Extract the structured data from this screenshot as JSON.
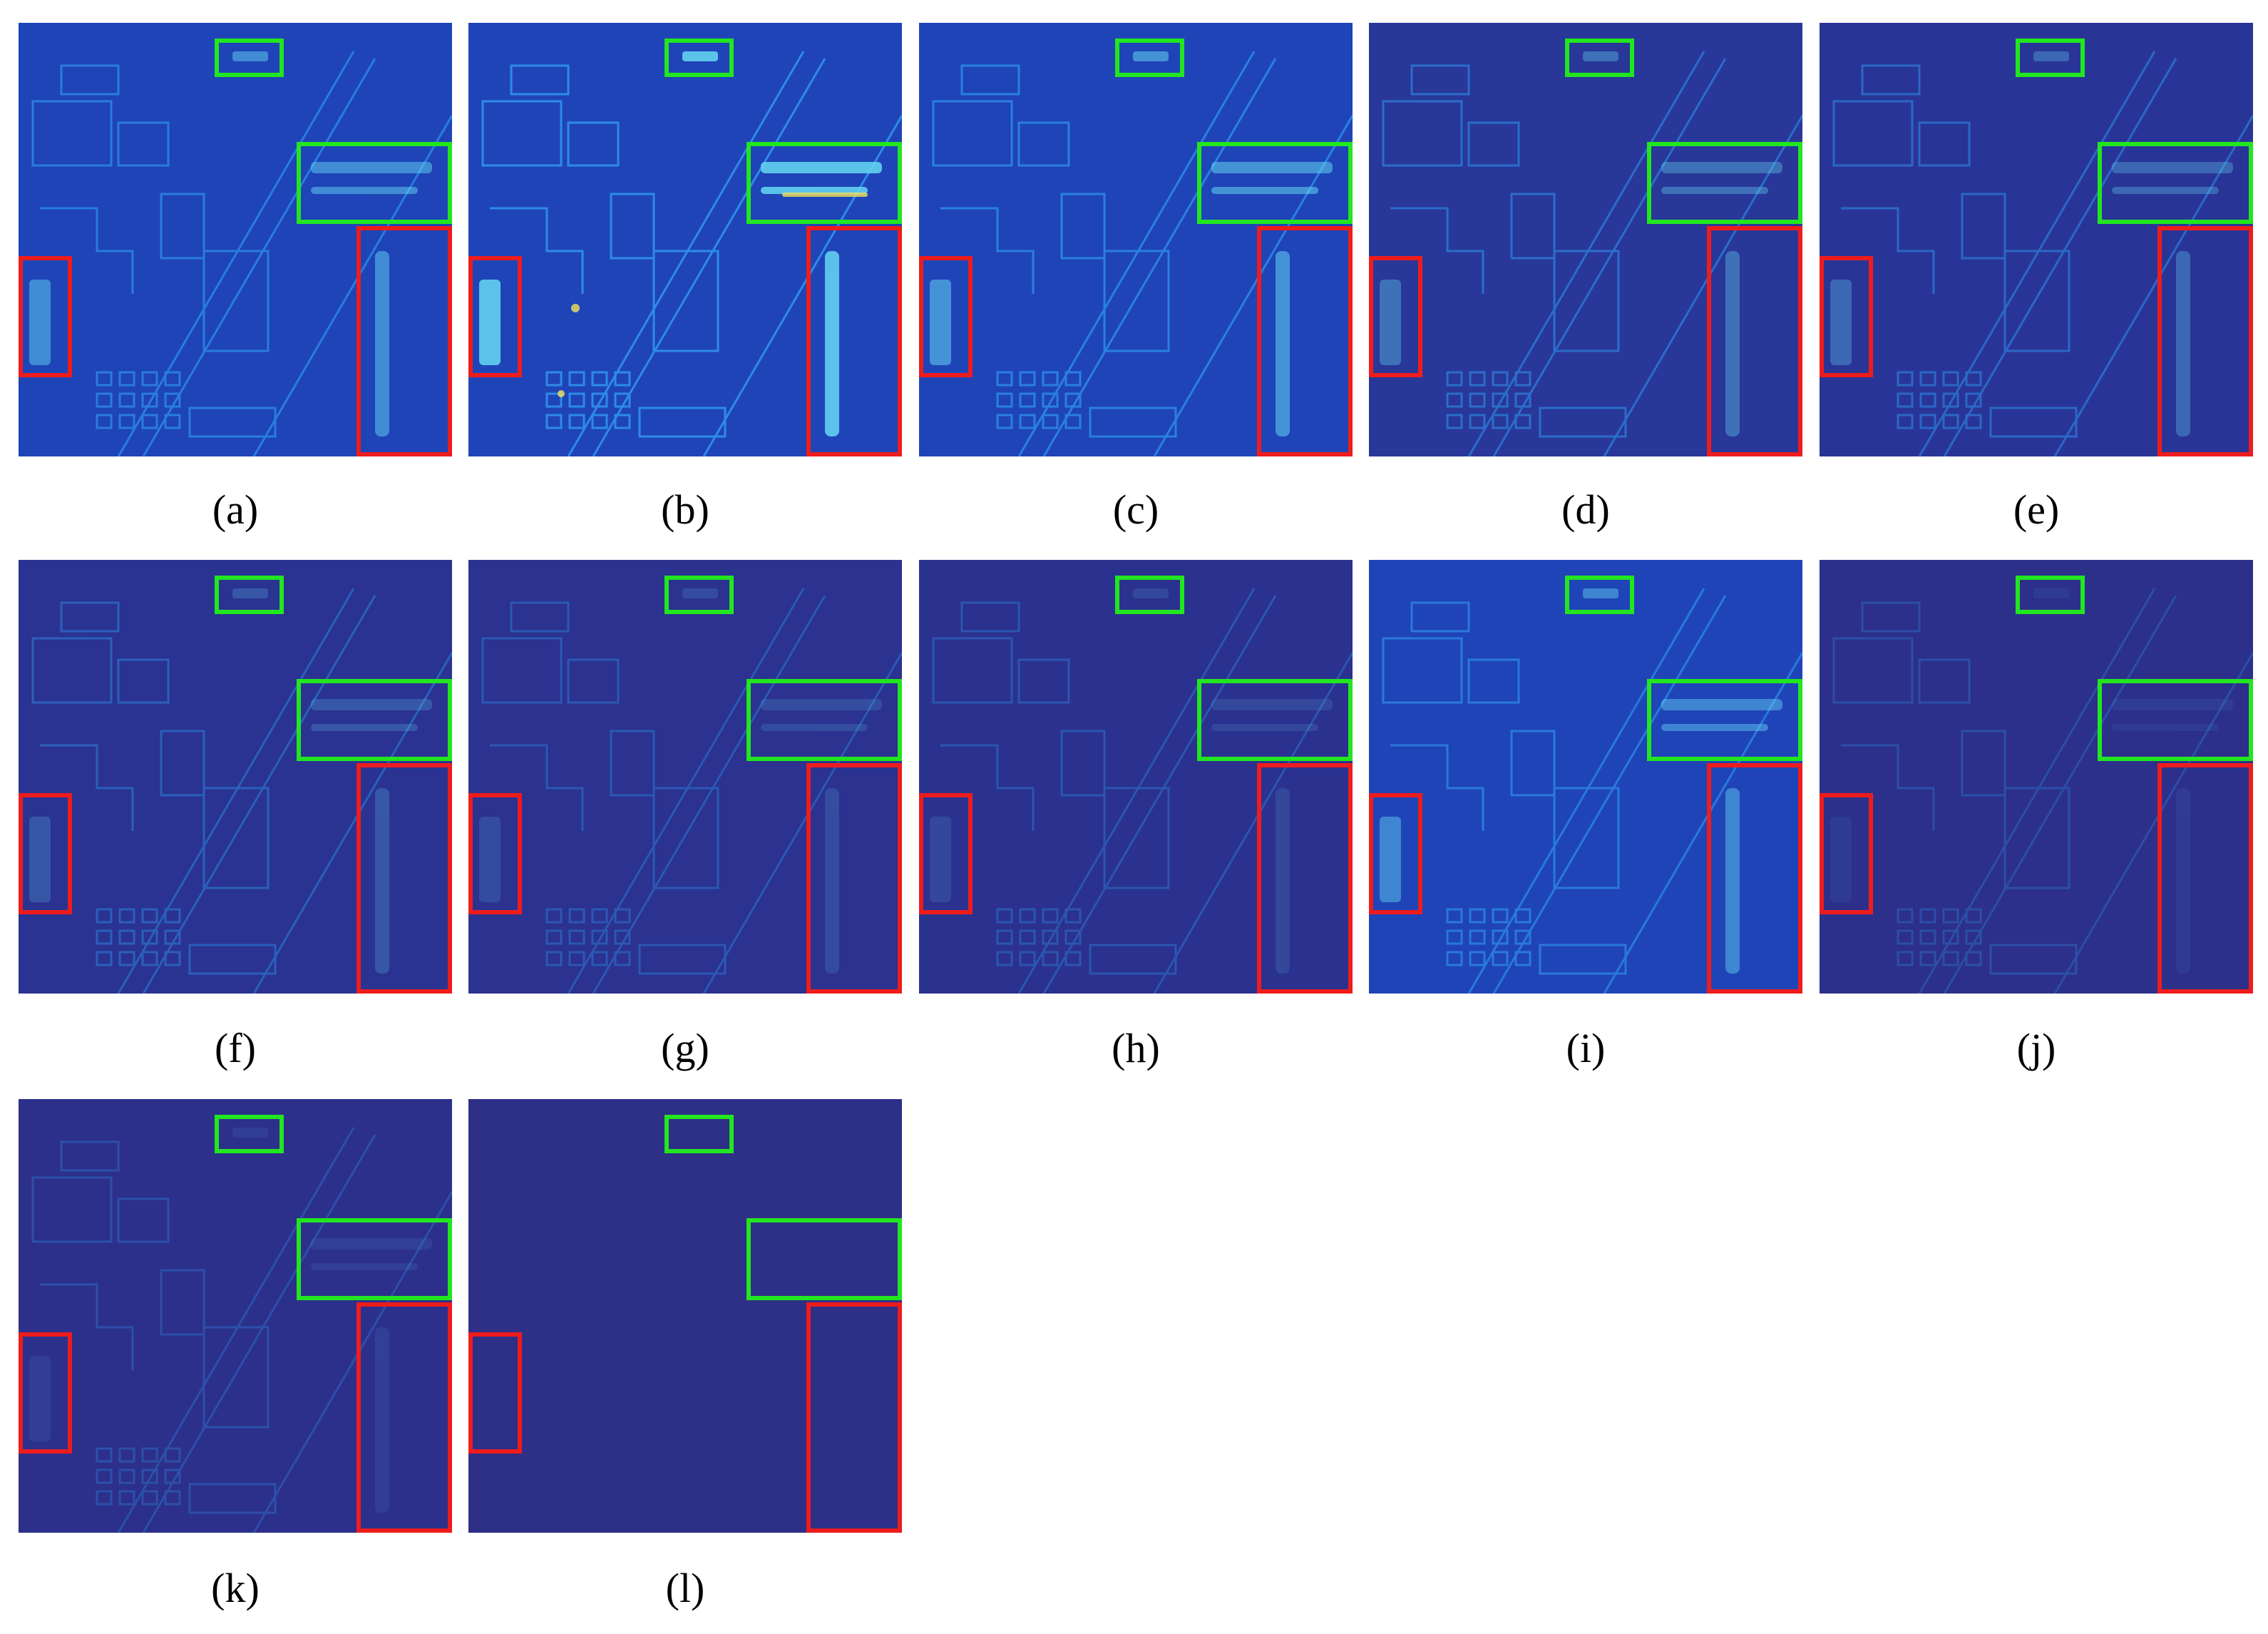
{
  "figure": {
    "panels": [
      {
        "id": "a",
        "caption": "(a)",
        "intensity": 0.55
      },
      {
        "id": "b",
        "caption": "(b)",
        "intensity": 0.95
      },
      {
        "id": "c",
        "caption": "(c)",
        "intensity": 0.6
      },
      {
        "id": "d",
        "caption": "(d)",
        "intensity": 0.4
      },
      {
        "id": "e",
        "caption": "(e)",
        "intensity": 0.35
      },
      {
        "id": "f",
        "caption": "(f)",
        "intensity": 0.25
      },
      {
        "id": "g",
        "caption": "(g)",
        "intensity": 0.18
      },
      {
        "id": "h",
        "caption": "(h)",
        "intensity": 0.15
      },
      {
        "id": "i",
        "caption": "(i)",
        "intensity": 0.5
      },
      {
        "id": "j",
        "caption": "(j)",
        "intensity": 0.08
      },
      {
        "id": "k",
        "caption": "(k)",
        "intensity": 0.1
      },
      {
        "id": "l",
        "caption": "(l)",
        "intensity": 0.0
      }
    ],
    "colors": {
      "base_dark": "#2e2f87",
      "base_mid": "#1f44b8",
      "edge": "#2d8be6",
      "highlight": "#66d7f2",
      "hot": "#f2e35a",
      "green_box": "#22e61f",
      "red_box": "#ee1c1c"
    }
  }
}
